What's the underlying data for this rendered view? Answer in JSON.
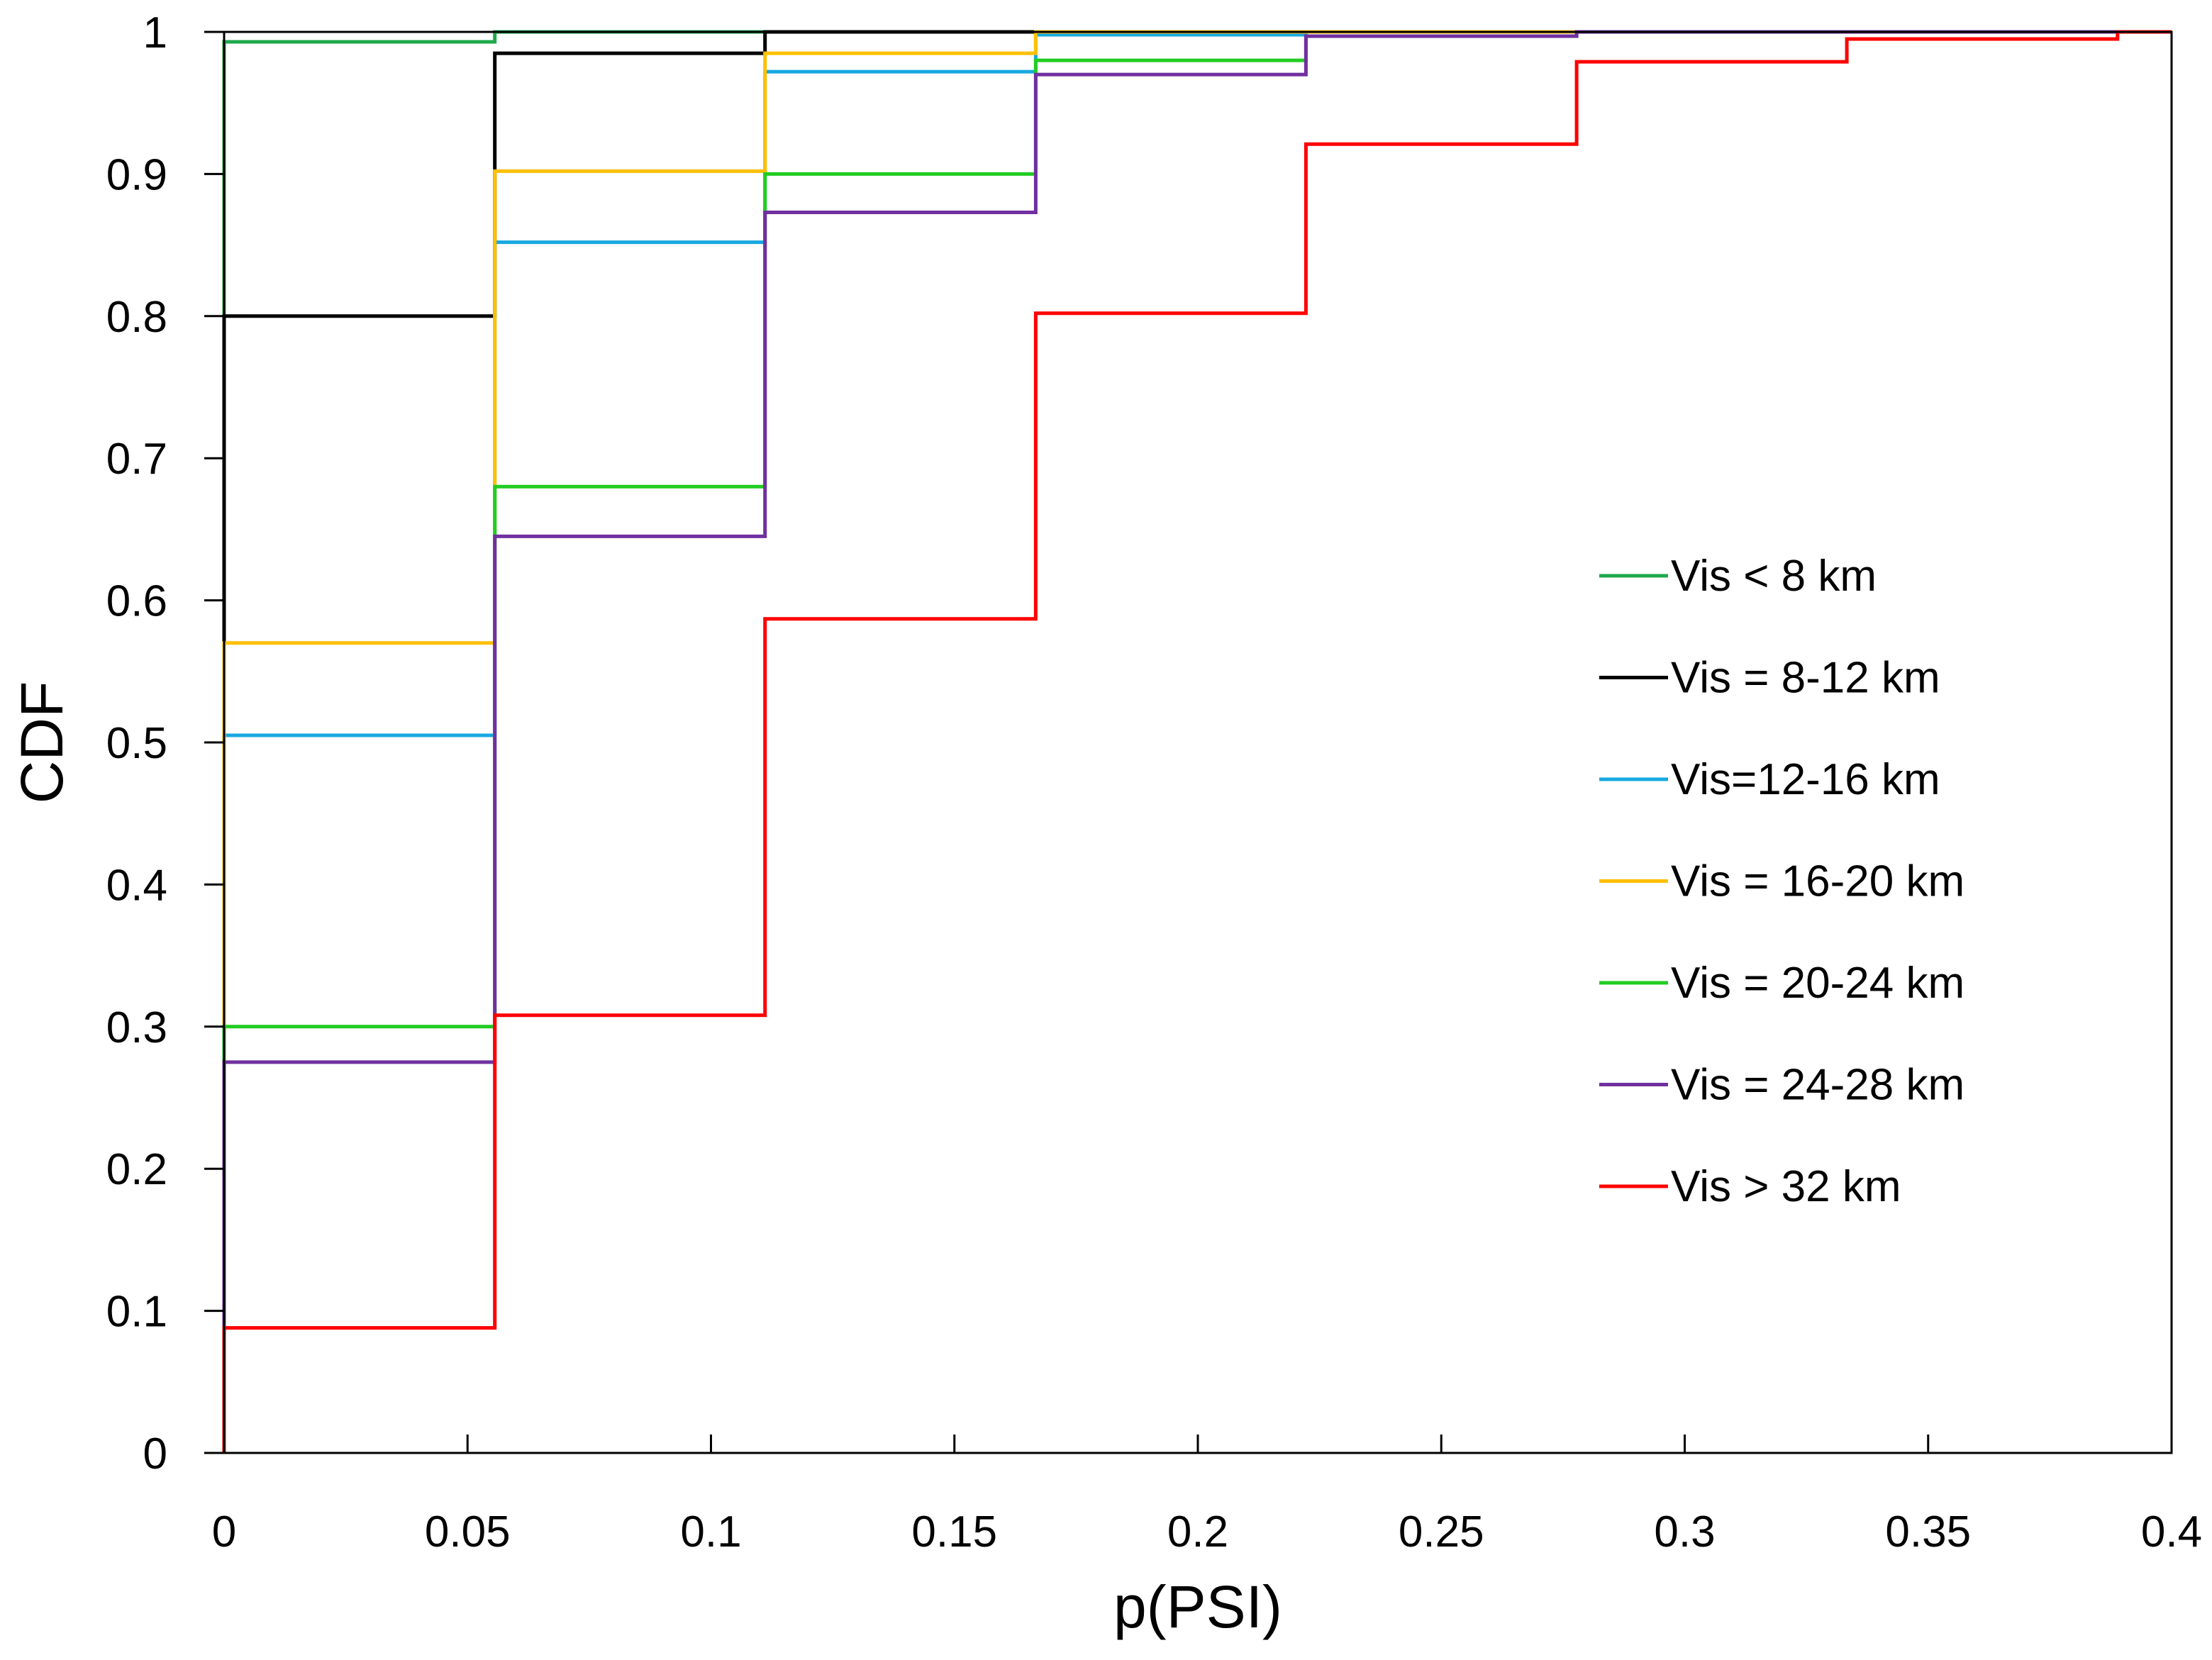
{
  "chart_data": {
    "type": "line",
    "step": true,
    "title": "",
    "xlabel": "p(PSI)",
    "ylabel": "CDF",
    "xlim": [
      0,
      0.4
    ],
    "ylim": [
      0,
      1
    ],
    "xticks": [
      "0",
      "0.05",
      "0.1",
      "0.15",
      "0.2",
      "0.25",
      "0.3",
      "0.35",
      "0.4"
    ],
    "yticks": [
      "0",
      "0.1",
      "0.2",
      "0.3",
      "0.4",
      "0.5",
      "0.6",
      "0.7",
      "0.8",
      "0.9",
      "1"
    ],
    "grid": false,
    "legend_position": "right",
    "x": [
      0,
      0.0556,
      0.1111,
      0.1667,
      0.2222,
      0.2778,
      0.3333,
      0.3889,
      0.4
    ],
    "series": [
      {
        "name": "Vis < 8 km",
        "color": "#1ea84a",
        "values": [
          0.993,
          1.0,
          1.0,
          1.0,
          1.0,
          1.0,
          1.0,
          1.0,
          1.0
        ]
      },
      {
        "name": "Vis = 8-12 km",
        "color": "#000000",
        "values": [
          0.8,
          0.985,
          1.0,
          1.0,
          1.0,
          1.0,
          1.0,
          1.0,
          1.0
        ]
      },
      {
        "name": "Vis=12-16 km",
        "color": "#18a8e0",
        "values": [
          0.505,
          0.852,
          0.972,
          0.998,
          1.0,
          1.0,
          1.0,
          1.0,
          1.0
        ]
      },
      {
        "name": "Vis = 16-20 km",
        "color": "#ffc000",
        "values": [
          0.57,
          0.902,
          0.985,
          1.0,
          1.0,
          1.0,
          1.0,
          1.0,
          1.0
        ]
      },
      {
        "name": "Vis = 20-24 km",
        "color": "#22cc22",
        "values": [
          0.3,
          0.68,
          0.9,
          0.98,
          0.997,
          1.0,
          1.0,
          1.0,
          1.0
        ]
      },
      {
        "name": "Vis = 24-28 km",
        "color": "#7030a0",
        "values": [
          0.275,
          0.645,
          0.873,
          0.97,
          0.997,
          1.0,
          1.0,
          1.0,
          1.0
        ]
      },
      {
        "name": "Vis > 32 km",
        "color": "#ff0000",
        "values": [
          0.088,
          0.308,
          0.587,
          0.802,
          0.921,
          0.979,
          0.995,
          1.0,
          1.0
        ]
      }
    ]
  }
}
